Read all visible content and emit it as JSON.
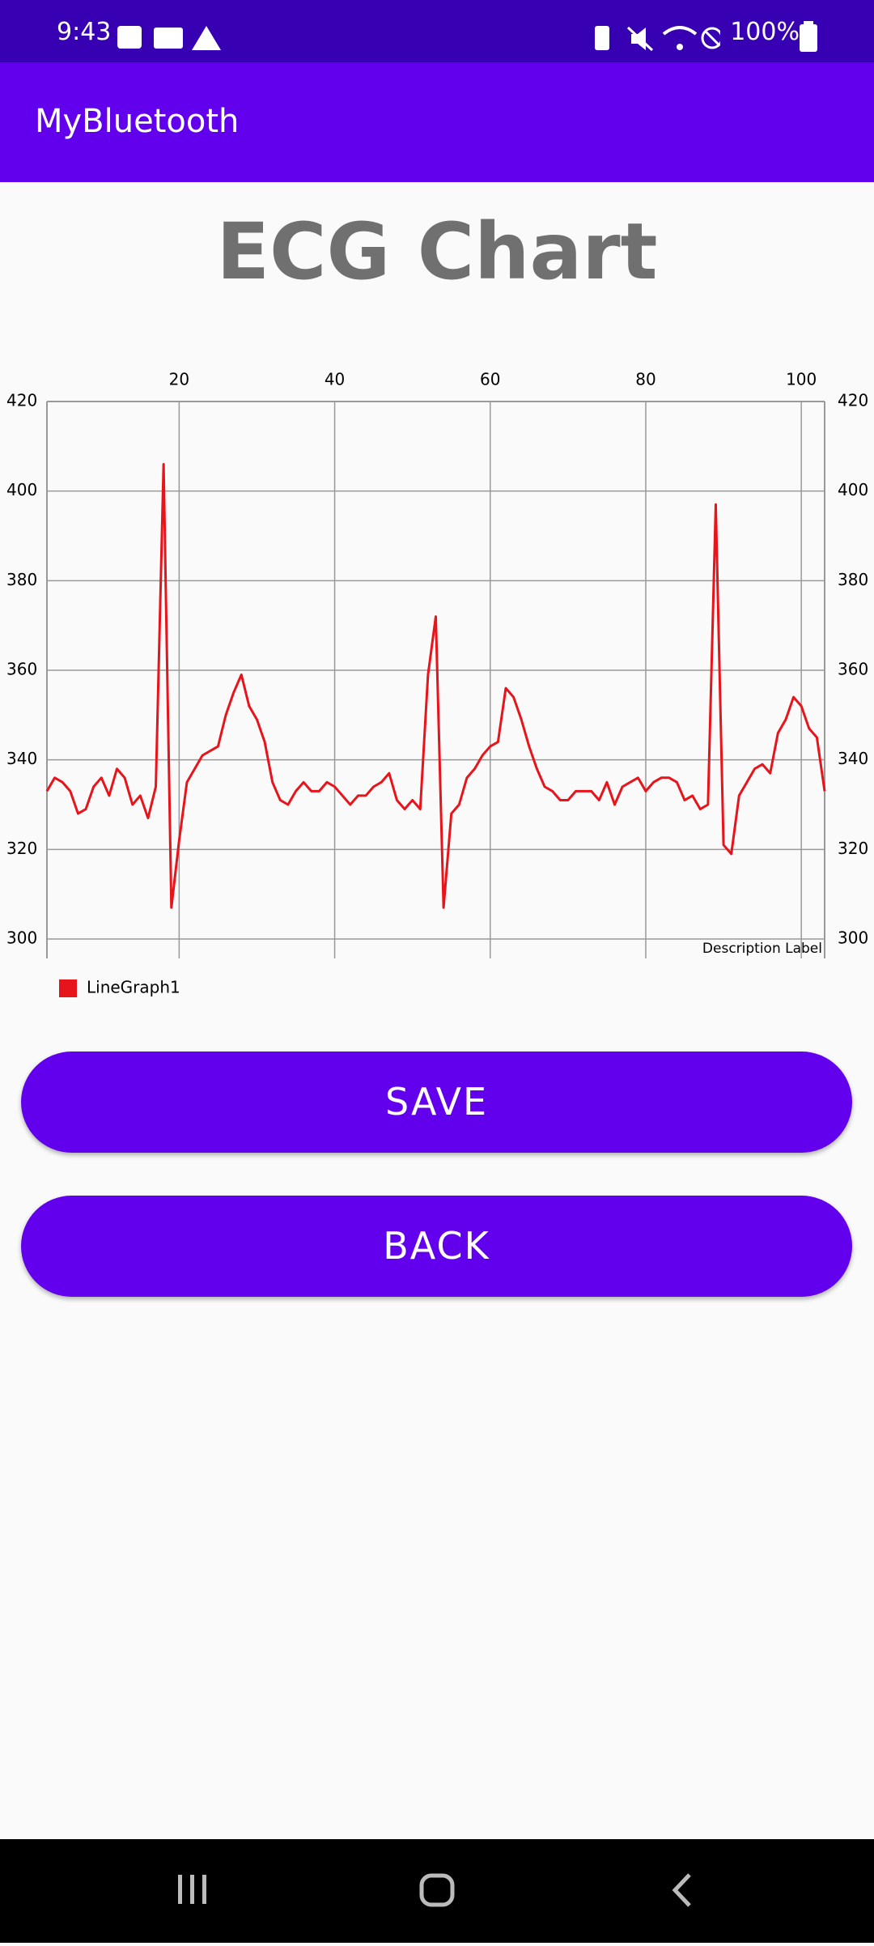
{
  "status_bar": {
    "time": "9:43",
    "battery": "100%"
  },
  "app_bar": {
    "title": "MyBluetooth"
  },
  "header": {
    "title": "ECG Chart"
  },
  "chart_data": {
    "type": "line",
    "x": [
      3,
      4,
      5,
      6,
      7,
      8,
      9,
      10,
      11,
      12,
      13,
      14,
      15,
      16,
      17,
      18,
      19,
      20,
      21,
      22,
      23,
      24,
      25,
      26,
      27,
      28,
      29,
      30,
      31,
      32,
      33,
      34,
      35,
      36,
      37,
      38,
      39,
      40,
      41,
      42,
      43,
      44,
      45,
      46,
      47,
      48,
      49,
      50,
      51,
      52,
      53,
      54,
      55,
      56,
      57,
      58,
      59,
      60,
      61,
      62,
      63,
      64,
      65,
      66,
      67,
      68,
      69,
      70,
      71,
      72,
      73,
      74,
      75,
      76,
      77,
      78,
      79,
      80,
      81,
      82,
      83,
      84,
      85,
      86,
      87,
      88,
      89,
      90,
      91,
      92,
      93,
      94,
      95,
      96,
      97,
      98,
      99,
      100,
      101,
      102,
      103
    ],
    "series": [
      {
        "name": "LineGraph1",
        "color": "#e8141b",
        "values": [
          333,
          336,
          335,
          333,
          328,
          329,
          334,
          336,
          332,
          338,
          336,
          330,
          332,
          327,
          334,
          406,
          307,
          322,
          335,
          338,
          341,
          342,
          343,
          350,
          355,
          359,
          352,
          349,
          344,
          335,
          331,
          330,
          333,
          335,
          333,
          333,
          335,
          334,
          332,
          330,
          332,
          332,
          334,
          335,
          337,
          331,
          329,
          331,
          329,
          359,
          372,
          307,
          328,
          330,
          336,
          338,
          341,
          343,
          344,
          356,
          354,
          349,
          343,
          338,
          334,
          333,
          331,
          331,
          333,
          333,
          333,
          331,
          335,
          330,
          334,
          335,
          336,
          333,
          335,
          336,
          336,
          335,
          331,
          332,
          329,
          330,
          397,
          321,
          319,
          332,
          335,
          338,
          339,
          337,
          346,
          349,
          354,
          352,
          347,
          345,
          333
        ]
      }
    ],
    "xlim": [
      3,
      103
    ],
    "xticks": [
      20,
      40,
      60,
      80,
      100
    ],
    "ylim": [
      300,
      420
    ],
    "yticks": [
      300,
      320,
      340,
      360,
      380,
      400,
      420
    ],
    "y2lim": [
      300,
      420
    ],
    "y2ticks": [
      300,
      320,
      340,
      360,
      380,
      400,
      420
    ],
    "description": "Description Label",
    "grid": true,
    "legend": "bottom-left"
  },
  "buttons": [
    "SAVE",
    "BACK"
  ]
}
